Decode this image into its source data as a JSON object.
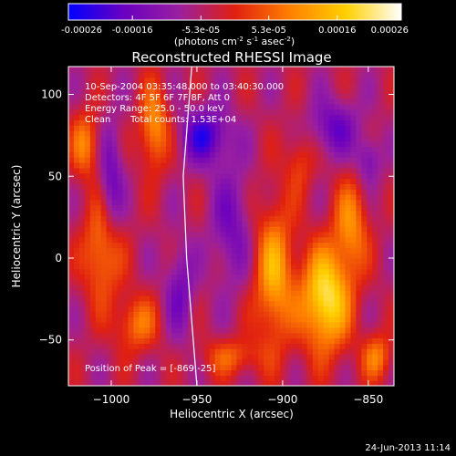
{
  "colorbar": {
    "tick_labels": [
      "-0.00026",
      "-0.00016",
      "-5.3e-05",
      "5.3e-05",
      "0.00016",
      "0.00026"
    ],
    "tick_values": [
      -0.00026,
      -0.00016,
      -5.3e-05,
      5.3e-05,
      0.00016,
      0.00026
    ],
    "range": [
      -0.00026,
      0.00026
    ],
    "colors": [
      "#0000ff",
      "#6a00c0",
      "#9a20a0",
      "#e02010",
      "#ff8000",
      "#ffd000",
      "#ffffff"
    ],
    "unit_main": "(photons cm",
    "unit_sup1": "-2",
    "unit_mid": " s",
    "unit_sup2": "-1",
    "unit_end": " asec",
    "unit_sup3": "-2",
    "unit_close": ")"
  },
  "chart_data": {
    "type": "heatmap",
    "title": "Reconstructed RHESSI Image",
    "xlabel": "Heliocentric X (arcsec)",
    "ylabel": "Heliocentric Y (arcsec)",
    "xlim": [
      -1025,
      -835
    ],
    "ylim": [
      -78,
      117
    ],
    "x_ticks": [
      -1000,
      -950,
      -900,
      -850
    ],
    "x_tick_labels": [
      "−1000",
      "−950",
      "−900",
      "−850"
    ],
    "y_ticks": [
      -50,
      0,
      50,
      100
    ],
    "y_tick_labels": [
      "−50",
      "0",
      "50",
      "100"
    ],
    "limb_line": [
      [
        -950,
        -78
      ],
      [
        -956,
        0
      ],
      [
        -958,
        50
      ],
      [
        -953,
        117
      ]
    ],
    "blobs": [
      {
        "x": -875,
        "y": -25,
        "sx": 10,
        "sy": 22,
        "v": 0.00026
      },
      {
        "x": -905,
        "y": -10,
        "sx": 8,
        "sy": 30,
        "v": 0.00018
      },
      {
        "x": -860,
        "y": 20,
        "sx": 7,
        "sy": 20,
        "v": 0.00014
      },
      {
        "x": -1005,
        "y": 5,
        "sx": 8,
        "sy": 22,
        "v": 0.00015
      },
      {
        "x": -975,
        "y": 80,
        "sx": 6,
        "sy": 18,
        "v": 0.00016
      },
      {
        "x": -1015,
        "y": 70,
        "sx": 6,
        "sy": 14,
        "v": 0.00013
      },
      {
        "x": -985,
        "y": -40,
        "sx": 9,
        "sy": 12,
        "v": 0.00012
      },
      {
        "x": -930,
        "y": -60,
        "sx": 12,
        "sy": 8,
        "v": 0.0001
      },
      {
        "x": -845,
        "y": -60,
        "sx": 6,
        "sy": 10,
        "v": 0.00013
      },
      {
        "x": -890,
        "y": 60,
        "sx": 6,
        "sy": 14,
        "v": 8e-05
      },
      {
        "x": -945,
        "y": 75,
        "sx": 10,
        "sy": 12,
        "v": -0.00016
      },
      {
        "x": -930,
        "y": 20,
        "sx": 8,
        "sy": 25,
        "v": -0.0001
      },
      {
        "x": -1000,
        "y": 45,
        "sx": 5,
        "sy": 25,
        "v": -0.00012
      },
      {
        "x": -870,
        "y": 80,
        "sx": 10,
        "sy": 12,
        "v": -0.00012
      },
      {
        "x": -960,
        "y": -20,
        "sx": 6,
        "sy": 20,
        "v": -0.0001
      },
      {
        "x": -850,
        "y": 60,
        "sx": 5,
        "sy": 10,
        "v": -0.0001
      }
    ]
  },
  "annotations": {
    "line1": "10-Sep-2004 03:35:48.000 to 03:40:30.000",
    "line2": "Detectors: 4F 5F 6F 7F 8F, Att 0",
    "line3": "Energy Range: 25.0 - 50.0 keV",
    "line4_a": "Clean",
    "line4_b": "Total counts: 1.53E+04",
    "peak": "Position of Peak = [-869,-25]"
  },
  "footer": {
    "timestamp": "24-Jun-2013 11:14"
  }
}
